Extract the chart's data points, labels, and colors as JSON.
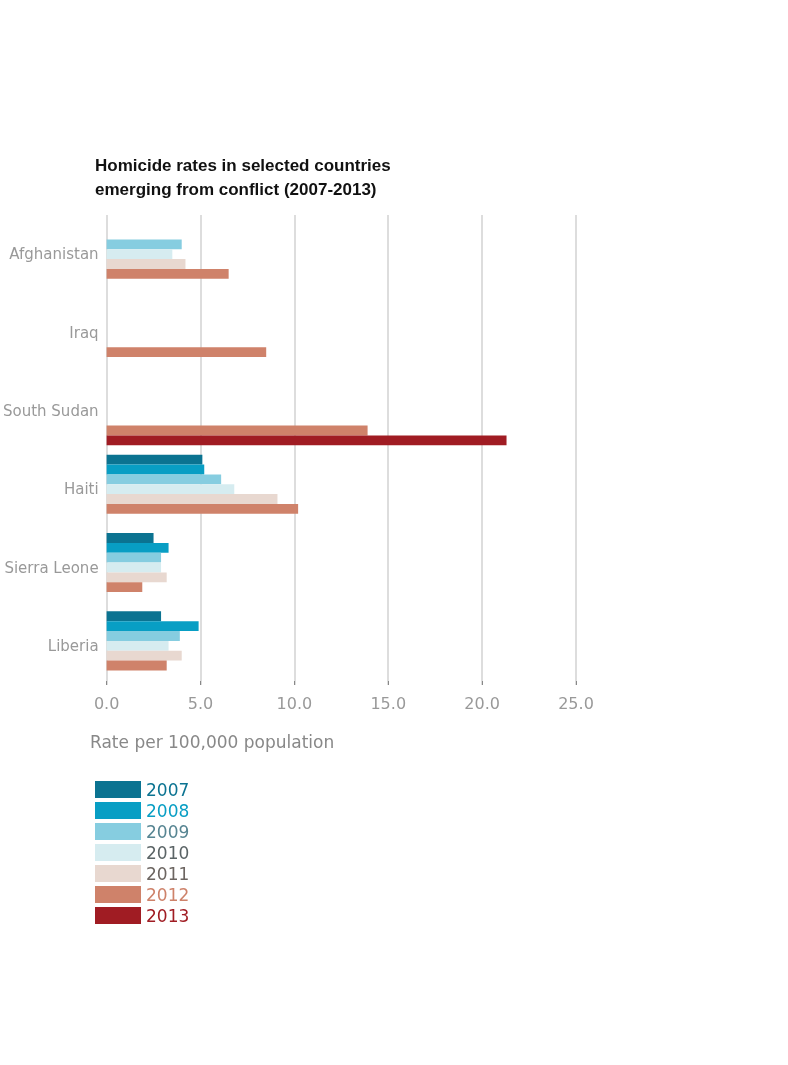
{
  "chart_data": {
    "type": "bar",
    "orientation": "horizontal",
    "title": "Homicide rates in selected countries\nemerging from conflict (2007-2013)",
    "xlabel": "Rate per 100,000 population",
    "categories": [
      "Afghanistan",
      "Iraq",
      "South Sudan",
      "Haiti",
      "Sierra Leone",
      "Liberia"
    ],
    "series": [
      {
        "name": "2007",
        "color": "#0b7391",
        "values": [
          null,
          null,
          null,
          5.1,
          2.5,
          2.9
        ]
      },
      {
        "name": "2008",
        "color": "#089ec4",
        "values": [
          null,
          null,
          null,
          5.2,
          3.3,
          4.9
        ]
      },
      {
        "name": "2009",
        "color": "#86cde0",
        "values": [
          4.0,
          null,
          null,
          6.1,
          2.9,
          3.9
        ]
      },
      {
        "name": "2010",
        "color": "#d6ecf0",
        "values": [
          3.5,
          null,
          null,
          6.8,
          2.9,
          3.3
        ]
      },
      {
        "name": "2011",
        "color": "#e8d8d0",
        "values": [
          4.2,
          null,
          null,
          9.1,
          3.2,
          4.0
        ]
      },
      {
        "name": "2012",
        "color": "#cf826a",
        "values": [
          6.5,
          8.5,
          13.9,
          10.2,
          1.9,
          3.2
        ]
      },
      {
        "name": "2013",
        "color": "#a01c23",
        "values": [
          null,
          null,
          21.3,
          null,
          null,
          null
        ]
      }
    ],
    "xlim": [
      0,
      25
    ],
    "xticks": [
      {
        "value": 0,
        "label": "0.0"
      },
      {
        "value": 5,
        "label": "5.0"
      },
      {
        "value": 10,
        "label": "10.0"
      },
      {
        "value": 15,
        "label": "15.0"
      },
      {
        "value": 20,
        "label": "20.0"
      },
      {
        "value": 25,
        "label": "25.0"
      }
    ],
    "grid": "x",
    "legend": "bottom left"
  }
}
